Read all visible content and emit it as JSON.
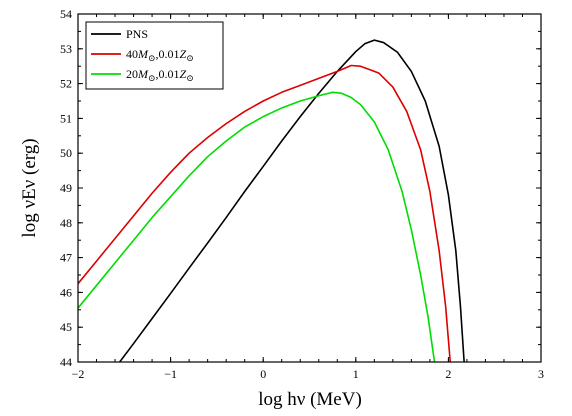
{
  "chart_data": {
    "type": "line",
    "title": "",
    "xlabel": "log hν  (MeV)",
    "ylabel": "log νEν (erg)",
    "xlim": [
      -2,
      3
    ],
    "ylim": [
      44,
      54
    ],
    "x_ticks": [
      -2,
      -1,
      0,
      1,
      2,
      3
    ],
    "y_ticks": [
      44,
      45,
      46,
      47,
      48,
      49,
      50,
      51,
      52,
      53,
      54
    ],
    "x_tick_labels": [
      "−2",
      "−1",
      "0",
      "1",
      "2",
      "3"
    ],
    "y_tick_labels": [
      "44",
      "45",
      "46",
      "47",
      "48",
      "49",
      "50",
      "51",
      "52",
      "53",
      "54"
    ],
    "grid": false,
    "legend": {
      "placement": "top-left",
      "entries": [
        {
          "label": "PNS",
          "mass": "",
          "metal": ""
        },
        {
          "label": "40",
          "mass": "M",
          "metal": ",0.01"
        },
        {
          "label": "20",
          "mass": "M",
          "metal": ",0.01"
        }
      ]
    },
    "series": [
      {
        "name": "PNS",
        "color": "#000000",
        "points": [
          [
            -1.55,
            44.0
          ],
          [
            -1.4,
            44.53
          ],
          [
            -1.2,
            45.25
          ],
          [
            -1.0,
            45.97
          ],
          [
            -0.8,
            46.7
          ],
          [
            -0.6,
            47.42
          ],
          [
            -0.4,
            48.15
          ],
          [
            -0.2,
            48.9
          ],
          [
            0.0,
            49.62
          ],
          [
            0.2,
            50.35
          ],
          [
            0.4,
            51.05
          ],
          [
            0.6,
            51.72
          ],
          [
            0.8,
            52.35
          ],
          [
            1.0,
            52.92
          ],
          [
            1.1,
            53.15
          ],
          [
            1.2,
            53.25
          ],
          [
            1.3,
            53.18
          ],
          [
            1.45,
            52.9
          ],
          [
            1.6,
            52.35
          ],
          [
            1.75,
            51.5
          ],
          [
            1.9,
            50.2
          ],
          [
            2.0,
            48.8
          ],
          [
            2.08,
            47.2
          ],
          [
            2.13,
            45.6
          ],
          [
            2.17,
            44.0
          ]
        ]
      },
      {
        "name": "40M,0.01Z",
        "color": "#dd0000",
        "points": [
          [
            -2.0,
            46.25
          ],
          [
            -1.8,
            46.9
          ],
          [
            -1.6,
            47.55
          ],
          [
            -1.4,
            48.2
          ],
          [
            -1.2,
            48.85
          ],
          [
            -1.0,
            49.45
          ],
          [
            -0.8,
            50.0
          ],
          [
            -0.6,
            50.45
          ],
          [
            -0.4,
            50.85
          ],
          [
            -0.2,
            51.2
          ],
          [
            0.0,
            51.5
          ],
          [
            0.2,
            51.75
          ],
          [
            0.4,
            51.95
          ],
          [
            0.6,
            52.15
          ],
          [
            0.8,
            52.35
          ],
          [
            0.95,
            52.52
          ],
          [
            1.05,
            52.5
          ],
          [
            1.15,
            52.4
          ],
          [
            1.25,
            52.3
          ],
          [
            1.4,
            51.9
          ],
          [
            1.55,
            51.2
          ],
          [
            1.7,
            50.1
          ],
          [
            1.8,
            48.9
          ],
          [
            1.9,
            47.2
          ],
          [
            1.97,
            45.6
          ],
          [
            2.02,
            44.0
          ]
        ]
      },
      {
        "name": "20M,0.01Z",
        "color": "#00dd00",
        "points": [
          [
            -2.0,
            45.55
          ],
          [
            -1.8,
            46.2
          ],
          [
            -1.6,
            46.85
          ],
          [
            -1.4,
            47.5
          ],
          [
            -1.2,
            48.15
          ],
          [
            -1.0,
            48.75
          ],
          [
            -0.8,
            49.35
          ],
          [
            -0.6,
            49.9
          ],
          [
            -0.4,
            50.35
          ],
          [
            -0.2,
            50.75
          ],
          [
            0.0,
            51.05
          ],
          [
            0.2,
            51.3
          ],
          [
            0.4,
            51.5
          ],
          [
            0.6,
            51.65
          ],
          [
            0.75,
            51.75
          ],
          [
            0.85,
            51.72
          ],
          [
            0.95,
            51.6
          ],
          [
            1.05,
            51.4
          ],
          [
            1.2,
            50.9
          ],
          [
            1.35,
            50.1
          ],
          [
            1.5,
            48.9
          ],
          [
            1.6,
            47.8
          ],
          [
            1.7,
            46.5
          ],
          [
            1.78,
            45.3
          ],
          [
            1.85,
            44.0
          ]
        ]
      }
    ]
  }
}
